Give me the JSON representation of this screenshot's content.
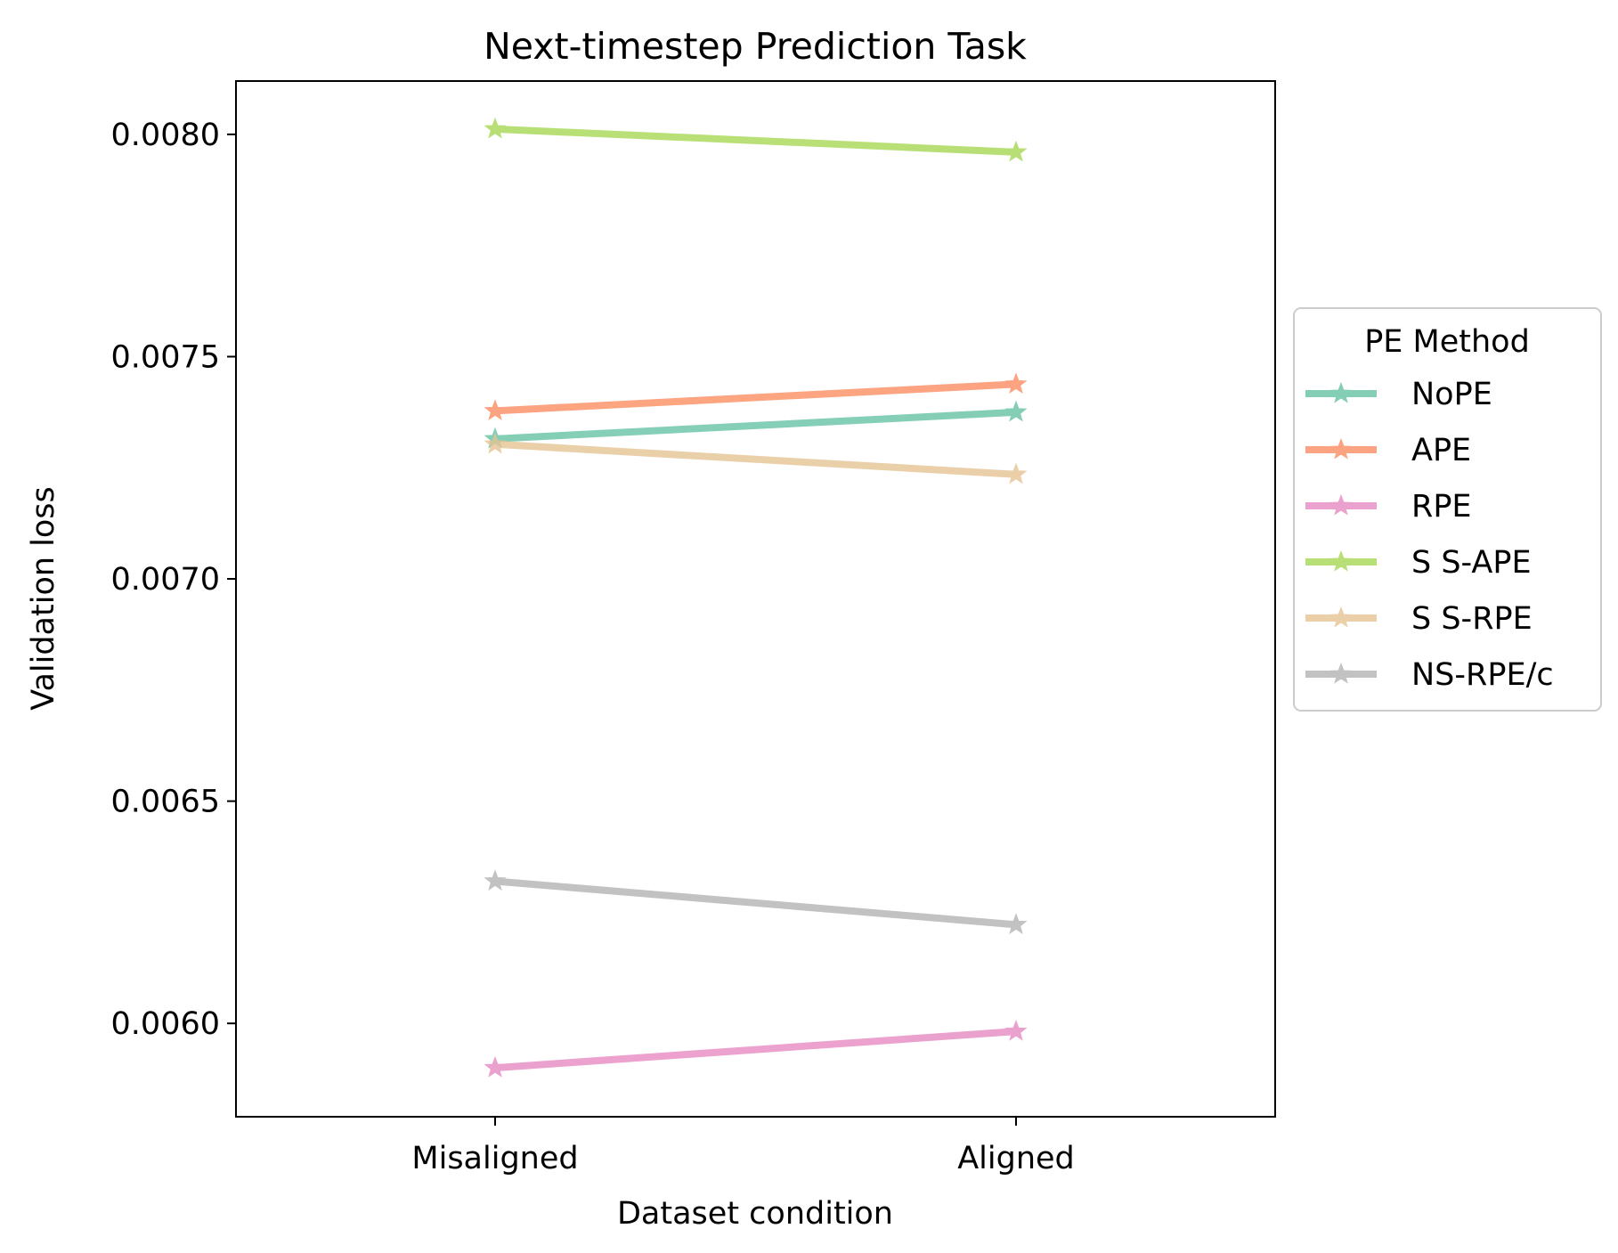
{
  "chart_data": {
    "type": "line",
    "title": "Next-timestep Prediction Task",
    "xlabel": "Dataset condition",
    "ylabel": "Validation loss",
    "categories": [
      "Misaligned",
      "Aligned"
    ],
    "ylim": [
      0.00579,
      0.00812
    ],
    "yticks": [
      0.006,
      0.0065,
      0.007,
      0.0075,
      0.008
    ],
    "ytick_labels": [
      "0.0060",
      "0.0065",
      "0.0070",
      "0.0075",
      "0.0080"
    ],
    "grid": false,
    "legend": {
      "title": "PE Method",
      "placement": "center-right, outside plot"
    },
    "marker": "star",
    "series": [
      {
        "name": "NoPE",
        "values": [
          0.007315,
          0.007375
        ],
        "color": "#66c2a5"
      },
      {
        "name": "APE",
        "values": [
          0.007378,
          0.007438
        ],
        "color": "#fc8d62"
      },
      {
        "name": "RPE",
        "values": [
          0.0059,
          0.005982
        ],
        "color": "#e78ac3"
      },
      {
        "name": "S S-APE",
        "values": [
          0.008012,
          0.00796
        ],
        "color": "#a6d854"
      },
      {
        "name": "S S-RPE",
        "values": [
          0.007303,
          0.007235
        ],
        "color": "#e5c494"
      },
      {
        "name": "NS-RPE/c",
        "values": [
          0.00632,
          0.006222
        ],
        "color": "#b3b3b3"
      }
    ]
  }
}
